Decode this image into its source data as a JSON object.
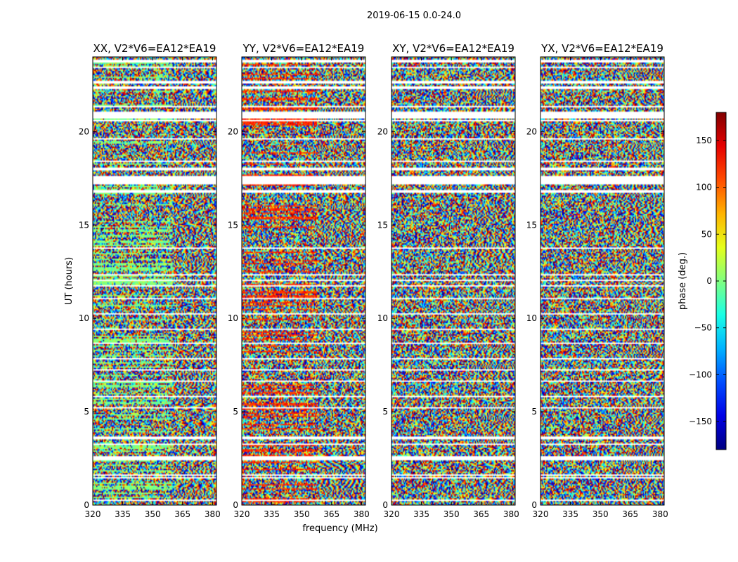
{
  "chart_data": {
    "type": "heatmap",
    "suptitle": "2019-06-15 0.0-24.0",
    "xlabel": "frequency (MHz)",
    "ylabel": "UT (hours)",
    "xlim": [
      320,
      382
    ],
    "ylim": [
      0,
      24
    ],
    "xticks": [
      320,
      335,
      350,
      365,
      380
    ],
    "yticks": [
      0,
      5,
      10,
      15,
      20
    ],
    "panels": [
      {
        "title": "XX, V2*V6=EA12*EA19",
        "tone": 0,
        "coherent_start_mhz": 360
      },
      {
        "title": "YY, V2*V6=EA12*EA19",
        "tone": 120,
        "coherent_start_mhz": 358
      },
      {
        "title": "XY, V2*V6=EA12*EA19",
        "tone": null,
        "coherent_start_mhz": 360
      },
      {
        "title": "YX, V2*V6=EA12*EA19",
        "tone": null,
        "coherent_start_mhz": 360
      }
    ],
    "flagged_ut_hours": [
      [
        0.2,
        0.28
      ],
      [
        1.4,
        1.5
      ],
      [
        1.6,
        1.68
      ],
      [
        2.4,
        2.6
      ],
      [
        3.2,
        3.3
      ],
      [
        3.55,
        3.7
      ],
      [
        5.2,
        5.28
      ],
      [
        5.8,
        5.88
      ],
      [
        6.6,
        6.66
      ],
      [
        7.2,
        7.3
      ],
      [
        7.78,
        7.84
      ],
      [
        8.6,
        8.7
      ],
      [
        9.4,
        9.48
      ],
      [
        10.2,
        10.26
      ],
      [
        11.05,
        11.12
      ],
      [
        11.7,
        11.8
      ],
      [
        12.0,
        12.1
      ],
      [
        12.3,
        12.4
      ],
      [
        13.7,
        13.78
      ],
      [
        14.6,
        14.66
      ],
      [
        15.8,
        15.86
      ],
      [
        16.75,
        16.85
      ],
      [
        17.2,
        17.6
      ],
      [
        17.95,
        18.05
      ],
      [
        18.4,
        18.46
      ],
      [
        19.6,
        19.66
      ],
      [
        20.55,
        20.65
      ],
      [
        20.7,
        21.1
      ],
      [
        21.3,
        21.38
      ],
      [
        22.3,
        22.4
      ],
      [
        22.55,
        22.75
      ],
      [
        23.4,
        23.48
      ],
      [
        23.7,
        23.85
      ]
    ],
    "colorbar": {
      "label": "phase (deg.)",
      "colormap": "jet",
      "range": [
        -180,
        180
      ],
      "ticks": [
        150,
        100,
        50,
        0,
        -50,
        -100,
        -150
      ],
      "tick_labels": [
        "150",
        "100",
        "50",
        "0",
        "−50",
        "−100",
        "−150"
      ]
    }
  }
}
